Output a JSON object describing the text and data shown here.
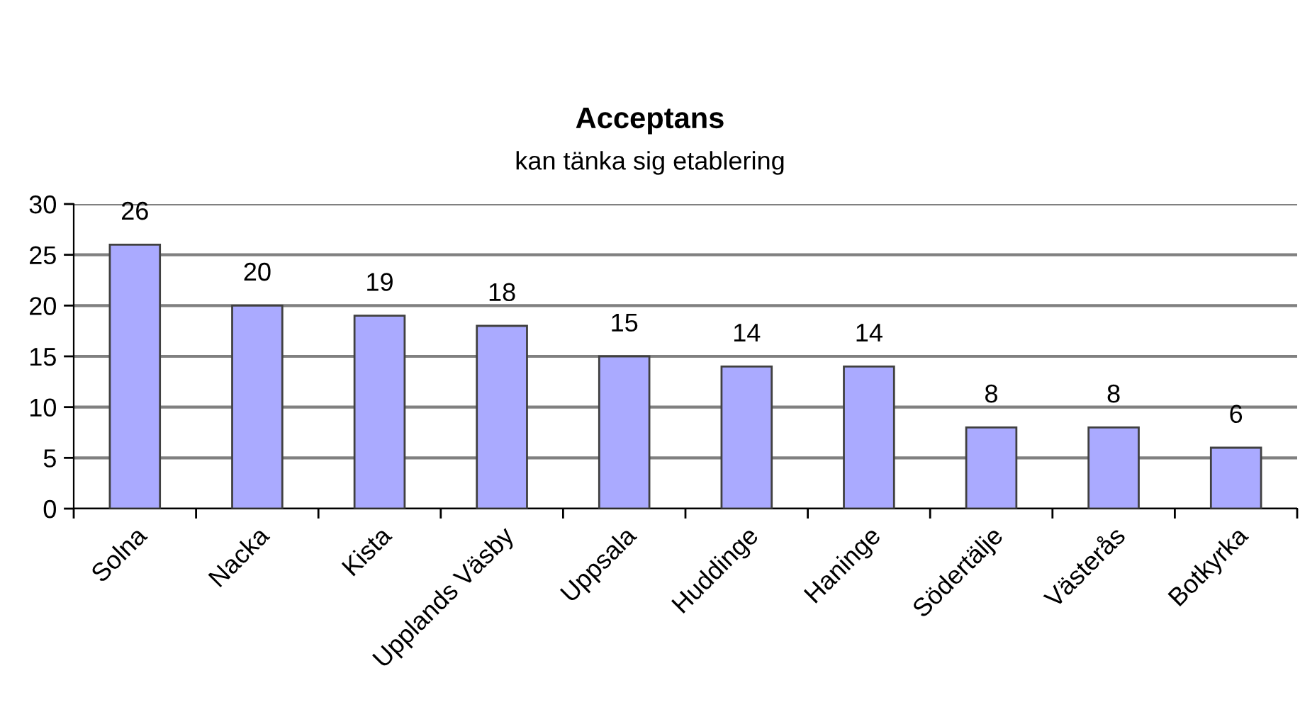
{
  "chart_data": {
    "type": "bar",
    "title": "Acceptans",
    "subtitle": "kan tänka sig etablering",
    "categories": [
      "Solna",
      "Nacka",
      "Kista",
      "Upplands Väsby",
      "Uppsala",
      "Huddinge",
      "Haninge",
      "Södertälje",
      "Västerås",
      "Botkyrka"
    ],
    "values": [
      26,
      20,
      19,
      18,
      15,
      14,
      14,
      8,
      8,
      6
    ],
    "color": "#aaaaff",
    "ylim": [
      0,
      30
    ],
    "yticks": [
      0,
      5,
      10,
      15,
      20,
      25,
      30
    ],
    "grid": "y",
    "data_labels": true
  }
}
